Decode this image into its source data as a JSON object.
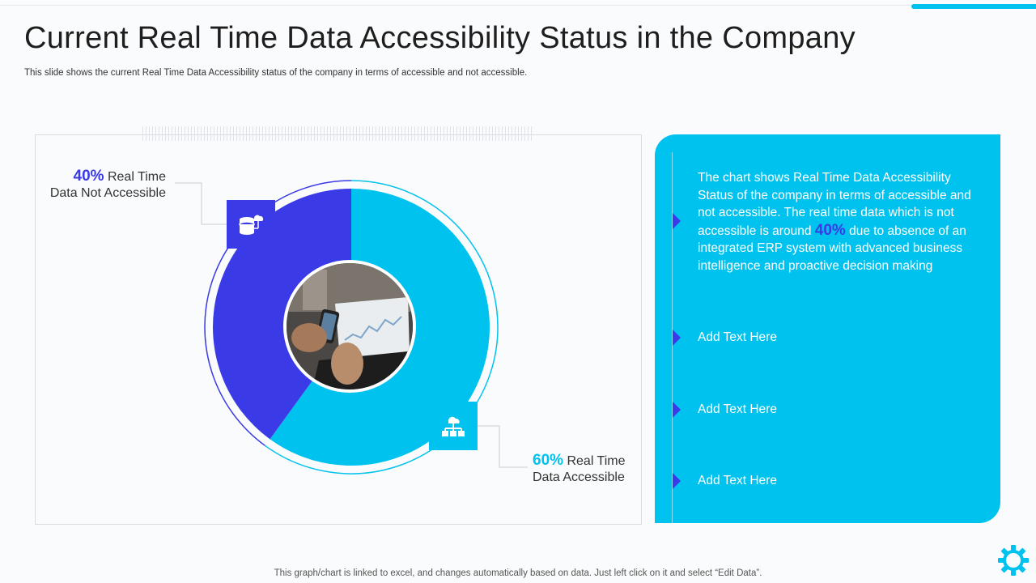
{
  "slide": {
    "title": "Current Real Time Data Accessibility Status in the Company",
    "subtitle": "This slide shows the current Real Time Data Accessibility status of the company in terms of accessible and not accessible.",
    "footer": "This graph/chart is linked to excel,  and changes automatically based on data. Just left click on it and select “Edit Data”."
  },
  "labels": {
    "not_accessible": {
      "pct": "40%",
      "line1": " Real Time",
      "line2": "Data Not  Accessible"
    },
    "accessible": {
      "pct": "60%",
      "line1": " Real Time",
      "line2": "Data  Accessible"
    }
  },
  "panel": {
    "main_before": "The chart shows Real Time Data Accessibility Status of the company in terms of accessible and not accessible. The real time data which is not accessible is around ",
    "main_highlight": "40%",
    "main_after": " due to absence of an integrated ERP system with advanced business intelligence and proactive decision making",
    "items": [
      "Add Text Here",
      "Add Text Here",
      "Add Text Here"
    ]
  },
  "colors": {
    "accessible": "#00c2ee",
    "not_accessible": "#3a3ae6"
  },
  "icons": {
    "not_accessible": "database-cloud-icon",
    "accessible": "network-hierarchy-icon",
    "corner": "gear-icon"
  },
  "chart_data": {
    "type": "pie",
    "title": "",
    "categories": [
      "Real Time Data Not  Accessible",
      "Real Time Data  Accessible"
    ],
    "values": [
      40,
      60
    ],
    "unit": "%",
    "colors": [
      "#3a3ae6",
      "#00c2ee"
    ]
  }
}
